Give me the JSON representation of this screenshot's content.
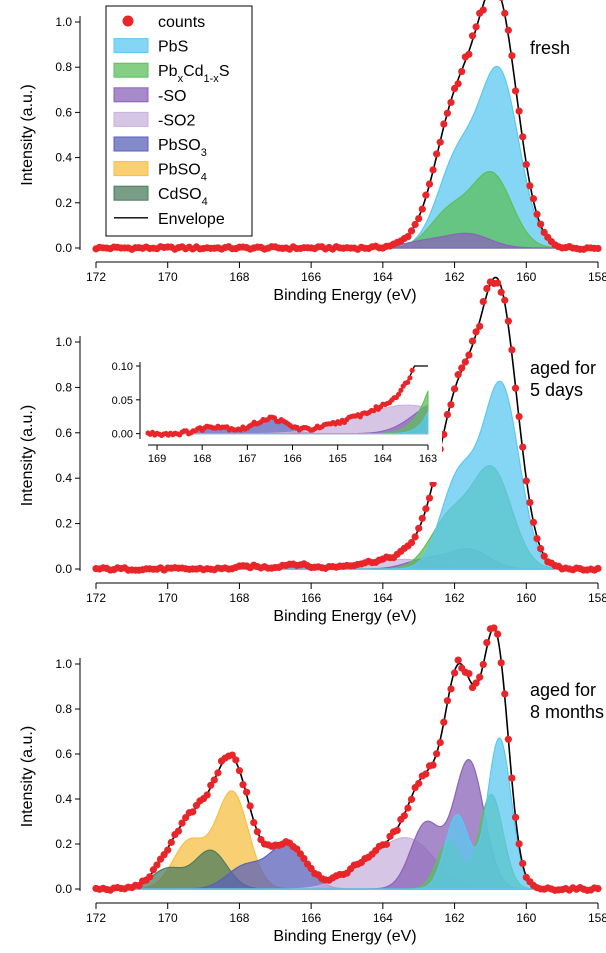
{
  "colors": {
    "counts": "#e8262a",
    "PbS": "#5bc8f0",
    "PbCdS": "#5cbf5c",
    "SO": "#8a63b8",
    "SO2": "#c9b1dc",
    "PbSO3": "#5a62b8",
    "PbSO4": "#f7bf45",
    "CdSO4": "#4c7c5e",
    "envelope": "#000000"
  },
  "legend": {
    "entries": [
      {
        "key": "counts",
        "label": "counts",
        "kind": "marker"
      },
      {
        "key": "PbS",
        "label": "PbS",
        "kind": "fill"
      },
      {
        "key": "PbCdS",
        "label": "PbCdS",
        "label_html": "Pb<tspan baseline-shift='sub' font-size='11'>x</tspan>Cd<tspan baseline-shift='sub' font-size='11'>1-x</tspan>S",
        "kind": "fill"
      },
      {
        "key": "SO",
        "label": "-SO",
        "kind": "fill"
      },
      {
        "key": "SO2",
        "label": "-SO2",
        "kind": "fill"
      },
      {
        "key": "PbSO3",
        "label": "PbSO3",
        "kind": "fill"
      },
      {
        "key": "PbSO4",
        "label": "PbSO4",
        "kind": "fill"
      },
      {
        "key": "CdSO4",
        "label": "CdSO4",
        "kind": "fill"
      },
      {
        "key": "envelope",
        "label": "Envelope",
        "kind": "line"
      }
    ]
  },
  "chart_data": [
    {
      "type": "area",
      "id": "fresh",
      "annotation": "fresh",
      "xlabel": "Binding Energy (eV)",
      "ylabel": "Intensity (a.u.)",
      "xlim": [
        172,
        158
      ],
      "ylim": [
        0,
        1.0
      ],
      "x_ticks": [
        172,
        170,
        168,
        166,
        164,
        162,
        160,
        158
      ],
      "y_ticks": [
        0.0,
        0.2,
        0.4,
        0.6,
        0.8,
        1.0
      ],
      "grid": false,
      "legend_position": "top-left",
      "components": [
        {
          "name": "PbS",
          "peaks": [
            {
              "center": 160.75,
              "height": 0.76,
              "width": 0.55
            },
            {
              "center": 161.93,
              "height": 0.38,
              "width": 0.55
            }
          ]
        },
        {
          "name": "PbCdS",
          "peaks": [
            {
              "center": 160.95,
              "height": 0.32,
              "width": 0.55
            },
            {
              "center": 162.13,
              "height": 0.16,
              "width": 0.55
            }
          ]
        },
        {
          "name": "SO",
          "peaks": [
            {
              "center": 161.6,
              "height": 0.06,
              "width": 0.6
            },
            {
              "center": 162.8,
              "height": 0.03,
              "width": 0.6
            }
          ]
        }
      ],
      "peak_values": {
        "envelope_max": 1.0,
        "second_max": 0.58
      },
      "counts_range": [
        172,
        158
      ]
    },
    {
      "type": "area",
      "id": "aged-5-days",
      "annotation": "aged for 5 days",
      "annotation_lines": [
        "aged for",
        "5 days"
      ],
      "xlabel": "Binding Energy (eV)",
      "ylabel": "Intensity (a.u.)",
      "xlim": [
        172,
        158
      ],
      "ylim": [
        0,
        1.0
      ],
      "x_ticks": [
        172,
        170,
        168,
        166,
        164,
        162,
        160,
        158
      ],
      "y_ticks": [
        0.0,
        0.2,
        0.4,
        0.6,
        0.8,
        1.0
      ],
      "grid": false,
      "components": [
        {
          "name": "PbSO3",
          "peaks": [
            {
              "center": 166.5,
              "height": 0.022,
              "width": 0.35
            },
            {
              "center": 167.7,
              "height": 0.011,
              "width": 0.35
            }
          ]
        },
        {
          "name": "SO2",
          "peaks": [
            {
              "center": 163.2,
              "height": 0.035,
              "width": 0.8
            },
            {
              "center": 164.4,
              "height": 0.018,
              "width": 0.8
            }
          ]
        },
        {
          "name": "SO",
          "peaks": [
            {
              "center": 161.6,
              "height": 0.085,
              "width": 0.55
            },
            {
              "center": 162.8,
              "height": 0.042,
              "width": 0.55
            }
          ]
        },
        {
          "name": "PbCdS",
          "peaks": [
            {
              "center": 160.95,
              "height": 0.43,
              "width": 0.55
            },
            {
              "center": 162.13,
              "height": 0.22,
              "width": 0.55
            }
          ]
        },
        {
          "name": "PbS",
          "peaks": [
            {
              "center": 160.7,
              "height": 0.8,
              "width": 0.5
            },
            {
              "center": 161.88,
              "height": 0.4,
              "width": 0.5
            }
          ]
        }
      ],
      "inset": {
        "xlim": [
          169.2,
          163
        ],
        "ylim": [
          -0.005,
          0.1
        ],
        "x_ticks": [
          169,
          168,
          167,
          166,
          165,
          164,
          163
        ],
        "y_ticks": [
          0.0,
          0.05,
          0.1
        ],
        "y_tick_labels": [
          "0.00",
          "0.05",
          "0.10"
        ]
      }
    },
    {
      "type": "area",
      "id": "aged-8-months",
      "annotation": "aged for 8 months",
      "annotation_lines": [
        "aged for",
        "8 months"
      ],
      "xlabel": "Binding Energy (eV)",
      "ylabel": "Intensity (a.u.)",
      "xlim": [
        172,
        158
      ],
      "ylim": [
        0,
        1.0
      ],
      "x_ticks": [
        172,
        170,
        168,
        166,
        164,
        162,
        160,
        158
      ],
      "y_ticks": [
        0.0,
        0.2,
        0.4,
        0.6,
        0.8,
        1.0
      ],
      "grid": false,
      "components": [
        {
          "name": "PbSO4",
          "peaks": [
            {
              "center": 168.2,
              "height": 0.43,
              "width": 0.45
            },
            {
              "center": 169.4,
              "height": 0.21,
              "width": 0.45
            }
          ]
        },
        {
          "name": "CdSO4",
          "peaks": [
            {
              "center": 168.8,
              "height": 0.17,
              "width": 0.45
            },
            {
              "center": 170.0,
              "height": 0.09,
              "width": 0.45
            }
          ]
        },
        {
          "name": "PbSO3",
          "peaks": [
            {
              "center": 166.65,
              "height": 0.2,
              "width": 0.5
            },
            {
              "center": 167.85,
              "height": 0.1,
              "width": 0.5
            }
          ]
        },
        {
          "name": "SO2",
          "peaks": [
            {
              "center": 163.2,
              "height": 0.2,
              "width": 0.7
            },
            {
              "center": 164.4,
              "height": 0.1,
              "width": 0.7
            }
          ]
        },
        {
          "name": "SO",
          "peaks": [
            {
              "center": 161.6,
              "height": 0.57,
              "width": 0.42
            },
            {
              "center": 162.8,
              "height": 0.29,
              "width": 0.42
            }
          ]
        },
        {
          "name": "PbCdS",
          "peaks": [
            {
              "center": 160.98,
              "height": 0.42,
              "width": 0.33
            },
            {
              "center": 162.16,
              "height": 0.21,
              "width": 0.33
            }
          ]
        },
        {
          "name": "PbS",
          "peaks": [
            {
              "center": 160.75,
              "height": 0.67,
              "width": 0.33
            },
            {
              "center": 161.93,
              "height": 0.33,
              "width": 0.33
            }
          ]
        }
      ]
    }
  ]
}
